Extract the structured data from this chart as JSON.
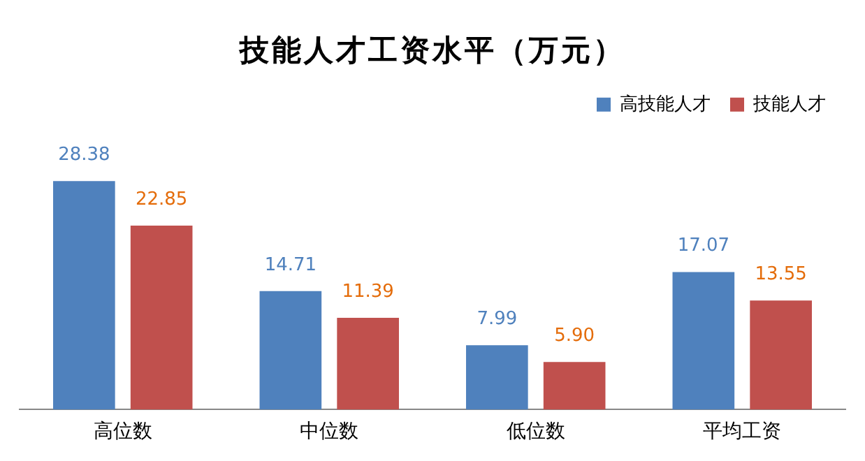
{
  "chart_data": {
    "type": "bar",
    "title": "技能人才工资水平（万元）",
    "categories": [
      "高位数",
      "中位数",
      "低位数",
      "平均工资"
    ],
    "series": [
      {
        "name": "高技能人才",
        "color": "#4f81bd",
        "values": [
          28.38,
          14.71,
          7.99,
          17.07
        ],
        "value_labels": [
          "28.38",
          "14.71",
          "7.99",
          "17.07"
        ]
      },
      {
        "name": "技能人才",
        "color": "#c0504d",
        "values": [
          22.85,
          11.39,
          5.9,
          13.55
        ],
        "value_labels": [
          "22.85",
          "11.39",
          "5.90",
          "13.55"
        ]
      }
    ],
    "legend": "top right",
    "grid": false
  }
}
